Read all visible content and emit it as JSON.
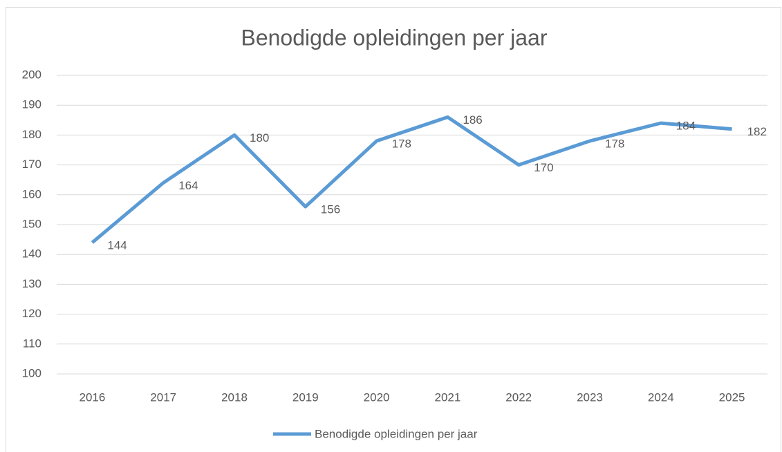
{
  "chart_data": {
    "type": "line",
    "title": "Benodigde opleidingen per jaar",
    "categories": [
      "2016",
      "2017",
      "2018",
      "2019",
      "2020",
      "2021",
      "2022",
      "2023",
      "2024",
      "2025"
    ],
    "series": [
      {
        "name": "Benodigde opleidingen per jaar",
        "color": "#5b9bd5",
        "values": [
          144,
          164,
          180,
          156,
          178,
          186,
          170,
          178,
          184,
          182
        ]
      }
    ],
    "ylim": [
      100,
      200
    ],
    "yticks": [
      100,
      110,
      120,
      130,
      140,
      150,
      160,
      170,
      180,
      190,
      200
    ],
    "grid": true,
    "legend": "bottom"
  }
}
